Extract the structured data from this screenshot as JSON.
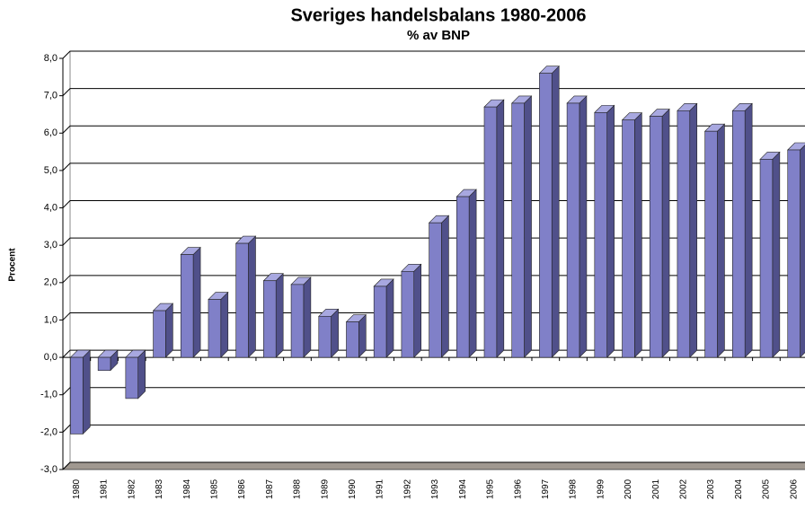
{
  "chart_data": {
    "type": "bar3d",
    "title": "Sveriges handelsbalans 1980-2006",
    "subtitle": "% av BNP",
    "ylabel": "Procent",
    "categories": [
      "1980",
      "1981",
      "1982",
      "1983",
      "1984",
      "1985",
      "1986",
      "1987",
      "1988",
      "1989",
      "1990",
      "1991",
      "1992",
      "1993",
      "1994",
      "1995",
      "1996",
      "1997",
      "1998",
      "1999",
      "2000",
      "2001",
      "2002",
      "2003",
      "2004",
      "2005",
      "2006"
    ],
    "values": [
      -2.05,
      -0.35,
      -1.1,
      1.25,
      2.75,
      1.55,
      3.05,
      2.05,
      1.95,
      1.1,
      0.95,
      1.9,
      2.3,
      3.6,
      4.3,
      6.7,
      6.8,
      7.6,
      6.8,
      6.55,
      6.35,
      6.45,
      6.6,
      6.05,
      6.6,
      5.3,
      5.55
    ],
    "color": "#8080c8",
    "ylim": [
      -3,
      8
    ],
    "yticks": [
      {
        "value": -3,
        "label": "-3,0"
      },
      {
        "value": -2,
        "label": "-2,0"
      },
      {
        "value": -1,
        "label": "-1,0"
      },
      {
        "value": 0,
        "label": "0,0"
      },
      {
        "value": 1,
        "label": "1,0"
      },
      {
        "value": 2,
        "label": "2,0"
      },
      {
        "value": 3,
        "label": "3,0"
      },
      {
        "value": 4,
        "label": "4,0"
      },
      {
        "value": 5,
        "label": "5,0"
      },
      {
        "value": 6,
        "label": "6,0"
      },
      {
        "value": 7,
        "label": "7,0"
      },
      {
        "value": 8,
        "label": "8,0"
      }
    ],
    "grid": true
  }
}
